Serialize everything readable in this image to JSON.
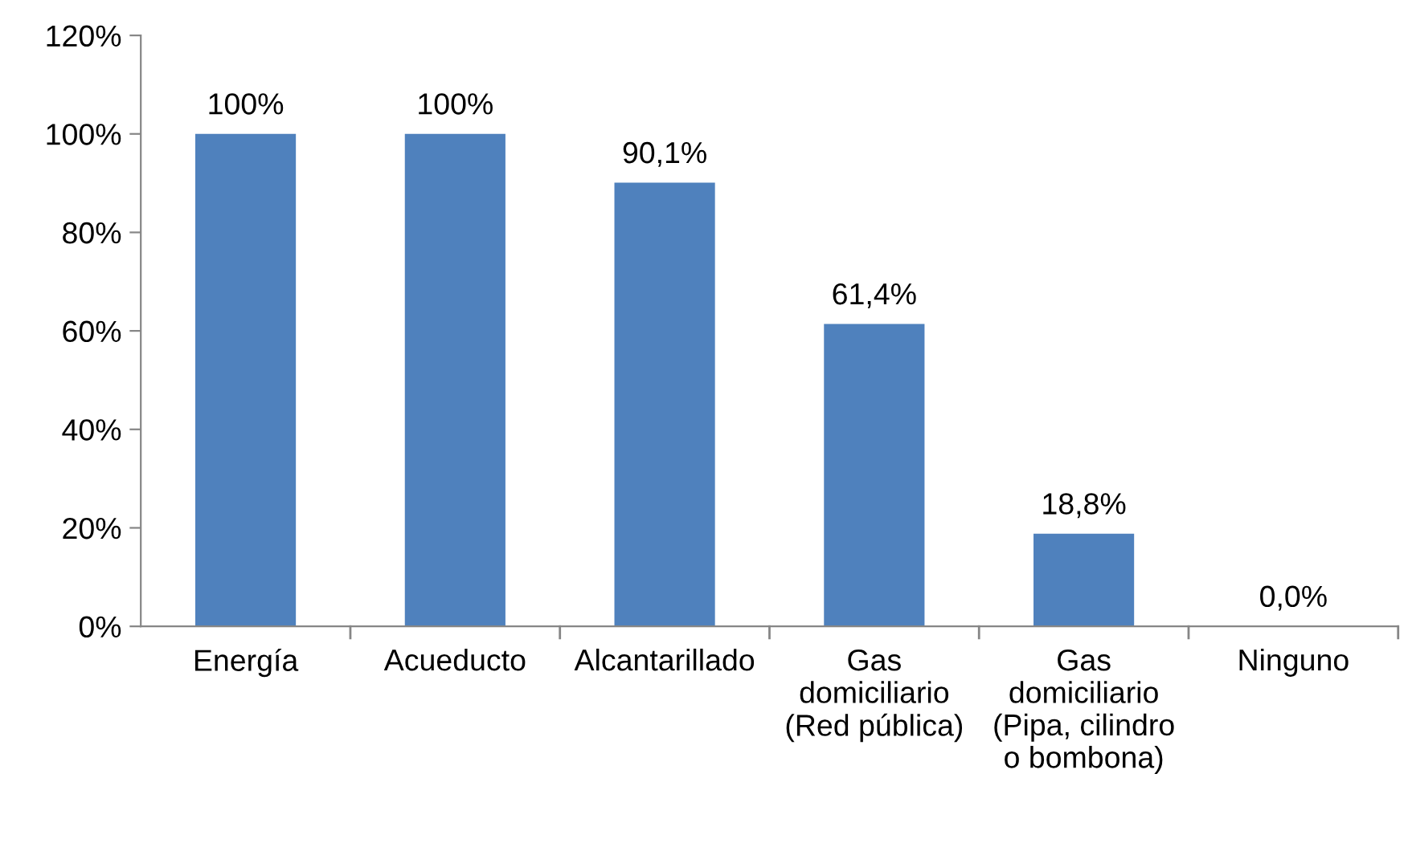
{
  "chart_data": {
    "type": "bar",
    "categories": [
      "Energía",
      "Acueducto",
      "Alcantarillado",
      "Gas\ndomiciliario\n(Red pública)",
      "Gas\ndomiciliario\n(Pipa, cilindro\no bombona)",
      "Ninguno"
    ],
    "values": [
      100,
      100,
      90.1,
      61.4,
      18.8,
      0.0
    ],
    "value_labels": [
      "100%",
      "100%",
      "90,1%",
      "61,4%",
      "18,8%",
      "0,0%"
    ],
    "color": "#4f81bd",
    "ylim": [
      0,
      120
    ],
    "yticks": [
      {
        "value": 0,
        "label": "0%"
      },
      {
        "value": 20,
        "label": "20%"
      },
      {
        "value": 40,
        "label": "40%"
      },
      {
        "value": 60,
        "label": "60%"
      },
      {
        "value": 80,
        "label": "80%"
      },
      {
        "value": 100,
        "label": "100%"
      },
      {
        "value": 120,
        "label": "120%"
      }
    ],
    "grid": false,
    "legend": false
  }
}
